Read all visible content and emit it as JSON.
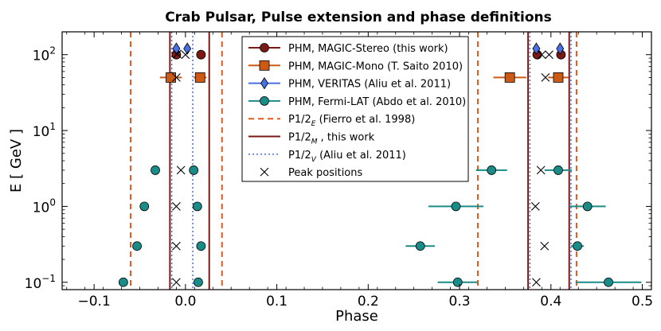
{
  "chart_data": {
    "type": "scatter",
    "title": "Crab Pulsar, Pulse extension and phase definitions",
    "xlabel": "Phase",
    "ylabel": "E [ GeV ]",
    "xlim": [
      -0.135,
      0.51
    ],
    "ylim": [
      0.08,
      200
    ],
    "yscale": "log",
    "xticks": [
      -0.1,
      0.0,
      0.1,
      0.2,
      0.3,
      0.4,
      0.5
    ],
    "xtick_labels": [
      "−0.1",
      "0.0",
      "0.1",
      "0.2",
      "0.3",
      "0.4",
      "0.5"
    ],
    "yticks": [
      0.1,
      1,
      10,
      100
    ],
    "ytick_bases": [
      "10",
      "10",
      "10",
      "10"
    ],
    "ytick_exps": [
      "−1",
      "0",
      "1",
      "2"
    ],
    "vlines": [
      {
        "series": "P1/2_E",
        "x": -0.06
      },
      {
        "series": "P1/2_E",
        "x": 0.04
      },
      {
        "series": "P1/2_E",
        "x": 0.32
      },
      {
        "series": "P1/2_E",
        "x": 0.428
      },
      {
        "series": "P1/2_M",
        "x": -0.017
      },
      {
        "series": "P1/2_M",
        "x": 0.026
      },
      {
        "series": "P1/2_M",
        "x": 0.375
      },
      {
        "series": "P1/2_M",
        "x": 0.42
      },
      {
        "series": "P1/2_V",
        "x": -0.015
      },
      {
        "series": "P1/2_V",
        "x": 0.008
      },
      {
        "series": "P1/2_V",
        "x": 0.377
      },
      {
        "series": "P1/2_V",
        "x": 0.422
      }
    ],
    "series": [
      {
        "name": "PHM, MAGIC-Stereo (this work)",
        "marker": "circle",
        "color": "#7b1a14",
        "points": [
          {
            "x": -0.01,
            "y": 100
          },
          {
            "x": 0.017,
            "y": 100
          },
          {
            "x": 0.385,
            "y": 100
          },
          {
            "x": 0.411,
            "y": 100
          }
        ]
      },
      {
        "name": "PHM, MAGIC-Mono (T. Saito 2010)",
        "marker": "square",
        "color": "#cc5a14",
        "points": [
          {
            "x": -0.016,
            "y": 50,
            "xerr": 0.012
          },
          {
            "x": 0.016,
            "y": 50,
            "xerr": 0.007
          },
          {
            "x": 0.355,
            "y": 50,
            "xerr": 0.018
          },
          {
            "x": 0.408,
            "y": 50,
            "xerr": 0.011
          }
        ]
      },
      {
        "name": "PHM, VERITAS (Aliu et al. 2011)",
        "marker": "diamond",
        "color": "#4a6fe0",
        "points": [
          {
            "x": -0.01,
            "y": 120
          },
          {
            "x": 0.002,
            "y": 120
          },
          {
            "x": 0.384,
            "y": 120
          },
          {
            "x": 0.41,
            "y": 120
          }
        ]
      },
      {
        "name": "PHM, Fermi-LAT (Abdo et al. 2010)",
        "marker": "circle",
        "color": "#1a8c88",
        "points": [
          {
            "x": -0.033,
            "y": 3.0,
            "xerr": 0
          },
          {
            "x": 0.009,
            "y": 3.0,
            "xerr": 0.004
          },
          {
            "x": 0.335,
            "y": 3.0,
            "xerr": 0.017
          },
          {
            "x": 0.408,
            "y": 3.0,
            "xerr": 0.015
          },
          {
            "x": -0.045,
            "y": 1.0,
            "xerr": 0
          },
          {
            "x": 0.013,
            "y": 1.0,
            "xerr": 0
          },
          {
            "x": 0.296,
            "y": 1.0,
            "xerr": 0.03
          },
          {
            "x": 0.44,
            "y": 1.0,
            "xerr": 0.02
          },
          {
            "x": -0.053,
            "y": 0.3,
            "xerr": 0
          },
          {
            "x": 0.017,
            "y": 0.3,
            "xerr": 0
          },
          {
            "x": 0.257,
            "y": 0.3,
            "xerr": 0.016
          },
          {
            "x": 0.429,
            "y": 0.3,
            "xerr": 0.007
          },
          {
            "x": -0.068,
            "y": 0.1,
            "xerr": 0
          },
          {
            "x": 0.014,
            "y": 0.1,
            "xerr": 0
          },
          {
            "x": 0.298,
            "y": 0.1,
            "xerr": 0.022
          },
          {
            "x": 0.463,
            "y": 0.1,
            "xerr": 0.036
          }
        ]
      },
      {
        "name": "Peak positions",
        "marker": "x",
        "color": "#000000",
        "points": [
          {
            "x": -0.009,
            "y": 102
          },
          {
            "x": 0.0,
            "y": 100
          },
          {
            "x": 0.39,
            "y": 100
          },
          {
            "x": 0.398,
            "y": 100
          },
          {
            "x": -0.01,
            "y": 50
          },
          {
            "x": 0.394,
            "y": 50
          },
          {
            "x": -0.005,
            "y": 3.0
          },
          {
            "x": 0.389,
            "y": 3.0
          },
          {
            "x": -0.01,
            "y": 1.0
          },
          {
            "x": 0.383,
            "y": 1.0
          },
          {
            "x": -0.01,
            "y": 0.3
          },
          {
            "x": 0.393,
            "y": 0.3
          },
          {
            "x": -0.01,
            "y": 0.1
          },
          {
            "x": 0.384,
            "y": 0.1
          }
        ]
      }
    ],
    "legend": {
      "placement": "top-center",
      "entries": [
        {
          "label": "PHM, MAGIC-Stereo (this work)",
          "kind": "line-marker",
          "marker": "circle",
          "color": "#7b1a14"
        },
        {
          "label": "PHM, MAGIC-Mono (T. Saito 2010)",
          "kind": "line-marker",
          "marker": "square",
          "color": "#cc5a14"
        },
        {
          "label": "PHM, VERITAS (Aliu et al. 2011)",
          "kind": "line-marker",
          "marker": "diamond",
          "color": "#4a6fe0"
        },
        {
          "label": "PHM, Fermi-LAT (Abdo et al. 2010)",
          "kind": "line-marker",
          "marker": "circle",
          "color": "#1a8c88"
        },
        {
          "label": "P1/2",
          "sub": "E",
          "suffix": " (Fierro et al. 1998)",
          "kind": "dashed",
          "color": "#e05a1e"
        },
        {
          "label": "P1/2",
          "sub": "M",
          "suffix": " , this work",
          "kind": "solid",
          "color": "#7b1a14"
        },
        {
          "label": "P1/2",
          "sub": "V",
          "suffix": " (Aliu et al. 2011)",
          "kind": "dotted",
          "color": "#4a6fe0"
        },
        {
          "label": "Peak positions",
          "kind": "x",
          "color": "#000000"
        }
      ]
    },
    "colors": {
      "E_lines": "#e05a1e",
      "M_lines": "#7b1a14",
      "V_lines": "#4a6fe0"
    }
  }
}
